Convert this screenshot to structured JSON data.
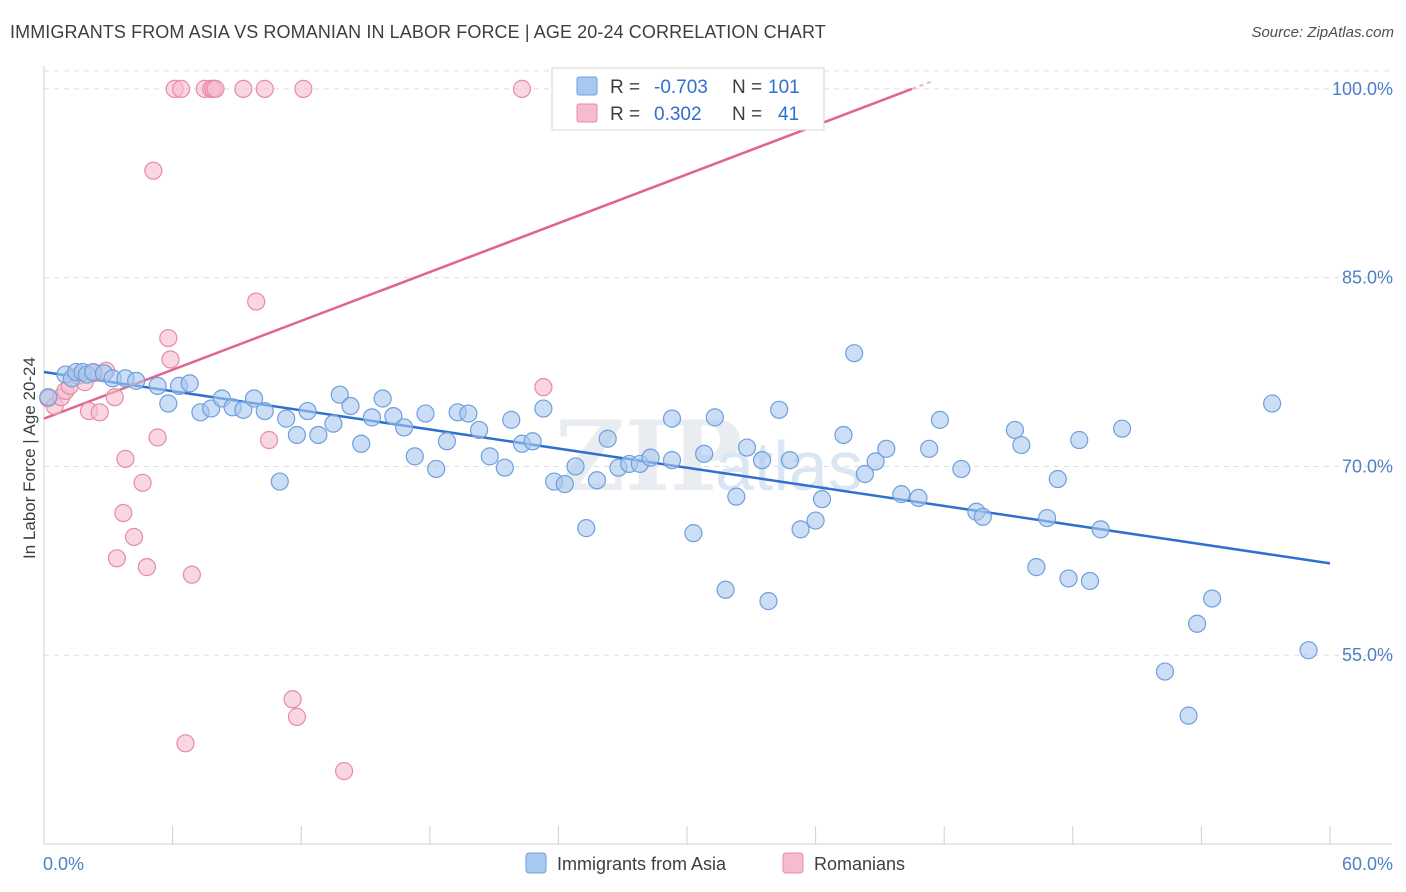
{
  "title": "IMMIGRANTS FROM ASIA VS ROMANIAN IN LABOR FORCE | AGE 20-24 CORRELATION CHART",
  "source": "Source: ZipAtlas.com",
  "watermark": "ZIPatlas",
  "colors": {
    "asia_fill": "#a9c8ef",
    "asia_stroke": "#6f9fdd",
    "asia_line": "#2f6fd0",
    "romanian_fill": "#f5bccd",
    "romanian_stroke": "#e88aa8",
    "romanian_line": "#e0648e",
    "tick_label": "#4d80c6",
    "grid": "#dddddd"
  },
  "legend": {
    "rows": [
      {
        "r_label": "R =",
        "r_value": "-0.703",
        "n_label": "N =",
        "n_value": "101"
      },
      {
        "r_label": "R =",
        "r_value": "0.302",
        "n_label": "N =",
        "n_value": "41"
      }
    ]
  },
  "chart_data": {
    "type": "scatter",
    "title": "IMMIGRANTS FROM ASIA VS ROMANIAN IN LABOR FORCE | AGE 20-24 CORRELATION CHART",
    "xlabel": "",
    "ylabel": "In Labor Force | Age 20-24",
    "xlim": [
      0,
      60
    ],
    "ylim": [
      40,
      101.5
    ],
    "x_tick_labels": [
      "0.0%",
      "60.0%"
    ],
    "y_ticks": [
      55,
      70,
      85,
      100
    ],
    "y_tick_labels": [
      "55.0%",
      "70.0%",
      "85.0%",
      "100.0%"
    ],
    "grid": "horizontal dashed",
    "legend_position": "bottom-center",
    "series": [
      {
        "name": "Immigrants from Asia",
        "R": -0.703,
        "N": 101,
        "trend": {
          "x": [
            0,
            60
          ],
          "y": [
            77.5,
            62.3
          ]
        },
        "points": [
          [
            0.2,
            75.5
          ],
          [
            1.0,
            77.3
          ],
          [
            1.3,
            77.0
          ],
          [
            1.5,
            77.5
          ],
          [
            1.8,
            77.5
          ],
          [
            2.0,
            77.3
          ],
          [
            2.3,
            77.5
          ],
          [
            2.8,
            77.4
          ],
          [
            3.2,
            77.0
          ],
          [
            3.8,
            77.0
          ],
          [
            4.3,
            76.8
          ],
          [
            5.3,
            76.4
          ],
          [
            5.8,
            75.0
          ],
          [
            6.3,
            76.4
          ],
          [
            6.8,
            76.6
          ],
          [
            7.3,
            74.3
          ],
          [
            7.8,
            74.6
          ],
          [
            8.3,
            75.4
          ],
          [
            8.8,
            74.7
          ],
          [
            9.3,
            74.5
          ],
          [
            9.8,
            75.4
          ],
          [
            10.3,
            74.4
          ],
          [
            11.0,
            68.8
          ],
          [
            11.3,
            73.8
          ],
          [
            11.8,
            72.5
          ],
          [
            12.3,
            74.4
          ],
          [
            12.8,
            72.5
          ],
          [
            13.5,
            73.4
          ],
          [
            13.8,
            75.7
          ],
          [
            14.3,
            74.8
          ],
          [
            14.8,
            71.8
          ],
          [
            15.3,
            73.9
          ],
          [
            15.8,
            75.4
          ],
          [
            16.3,
            74.0
          ],
          [
            16.8,
            73.1
          ],
          [
            17.3,
            70.8
          ],
          [
            17.8,
            74.2
          ],
          [
            18.3,
            69.8
          ],
          [
            18.8,
            72.0
          ],
          [
            19.3,
            74.3
          ],
          [
            19.8,
            74.2
          ],
          [
            20.3,
            72.9
          ],
          [
            20.8,
            70.8
          ],
          [
            21.5,
            69.9
          ],
          [
            21.8,
            73.7
          ],
          [
            22.3,
            71.8
          ],
          [
            22.8,
            72.0
          ],
          [
            23.3,
            74.6
          ],
          [
            23.8,
            68.8
          ],
          [
            24.3,
            68.6
          ],
          [
            24.8,
            70.0
          ],
          [
            25.3,
            65.1
          ],
          [
            25.8,
            68.9
          ],
          [
            26.3,
            72.2
          ],
          [
            26.8,
            69.9
          ],
          [
            27.3,
            70.2
          ],
          [
            27.8,
            70.2
          ],
          [
            28.3,
            70.7
          ],
          [
            29.3,
            73.8
          ],
          [
            29.3,
            70.5
          ],
          [
            30.3,
            64.7
          ],
          [
            30.8,
            71.0
          ],
          [
            31.3,
            73.9
          ],
          [
            31.8,
            60.2
          ],
          [
            32.3,
            67.6
          ],
          [
            32.8,
            71.5
          ],
          [
            33.5,
            70.5
          ],
          [
            33.8,
            59.3
          ],
          [
            34.3,
            74.5
          ],
          [
            34.8,
            70.5
          ],
          [
            35.3,
            65.0
          ],
          [
            36.0,
            65.7
          ],
          [
            36.3,
            67.4
          ],
          [
            37.3,
            72.5
          ],
          [
            37.8,
            79.0
          ],
          [
            38.3,
            69.4
          ],
          [
            38.8,
            70.4
          ],
          [
            39.3,
            71.4
          ],
          [
            40.0,
            67.8
          ],
          [
            40.8,
            67.5
          ],
          [
            41.3,
            71.4
          ],
          [
            41.8,
            73.7
          ],
          [
            42.8,
            69.8
          ],
          [
            43.5,
            66.4
          ],
          [
            43.8,
            66.0
          ],
          [
            45.3,
            72.9
          ],
          [
            45.6,
            71.7
          ],
          [
            46.3,
            62.0
          ],
          [
            46.8,
            65.9
          ],
          [
            47.3,
            69.0
          ],
          [
            47.8,
            61.1
          ],
          [
            48.3,
            72.1
          ],
          [
            48.8,
            60.9
          ],
          [
            49.3,
            65.0
          ],
          [
            50.3,
            73.0
          ],
          [
            52.3,
            53.7
          ],
          [
            53.8,
            57.5
          ],
          [
            53.4,
            50.2
          ],
          [
            54.5,
            59.5
          ],
          [
            57.3,
            75.0
          ],
          [
            59.0,
            55.4
          ]
        ]
      },
      {
        "name": "Romanians",
        "R": 0.302,
        "N": 41,
        "trend": {
          "x": [
            0,
            40.5
          ],
          "y": [
            73.8,
            100.0
          ]
        },
        "points": [
          [
            0.2,
            75.4
          ],
          [
            0.5,
            74.8
          ],
          [
            0.8,
            75.5
          ],
          [
            1.0,
            76.0
          ],
          [
            1.2,
            76.4
          ],
          [
            1.6,
            77.2
          ],
          [
            1.9,
            76.7
          ],
          [
            2.1,
            74.4
          ],
          [
            2.3,
            77.4
          ],
          [
            2.6,
            74.3
          ],
          [
            2.9,
            77.6
          ],
          [
            3.3,
            75.5
          ],
          [
            3.4,
            62.7
          ],
          [
            3.7,
            66.3
          ],
          [
            3.8,
            70.6
          ],
          [
            4.2,
            64.4
          ],
          [
            4.6,
            68.7
          ],
          [
            4.8,
            62.0
          ],
          [
            5.1,
            93.5
          ],
          [
            5.3,
            72.3
          ],
          [
            5.8,
            80.2
          ],
          [
            5.9,
            78.5
          ],
          [
            6.1,
            100.0
          ],
          [
            6.4,
            100.0
          ],
          [
            6.6,
            48.0
          ],
          [
            6.9,
            61.4
          ],
          [
            7.5,
            100.0
          ],
          [
            7.8,
            100.0
          ],
          [
            7.9,
            100.0
          ],
          [
            8.0,
            100.0
          ],
          [
            9.3,
            100.0
          ],
          [
            9.9,
            83.1
          ],
          [
            10.3,
            100.0
          ],
          [
            10.5,
            72.1
          ],
          [
            11.6,
            51.5
          ],
          [
            11.8,
            50.1
          ],
          [
            12.1,
            100.0
          ],
          [
            14.0,
            45.8
          ],
          [
            22.3,
            100.0
          ],
          [
            23.3,
            76.3
          ],
          [
            35.9,
            100.0
          ]
        ]
      }
    ]
  },
  "bottom_legend": [
    {
      "label": "Immigrants from Asia"
    },
    {
      "label": "Romanians"
    }
  ]
}
